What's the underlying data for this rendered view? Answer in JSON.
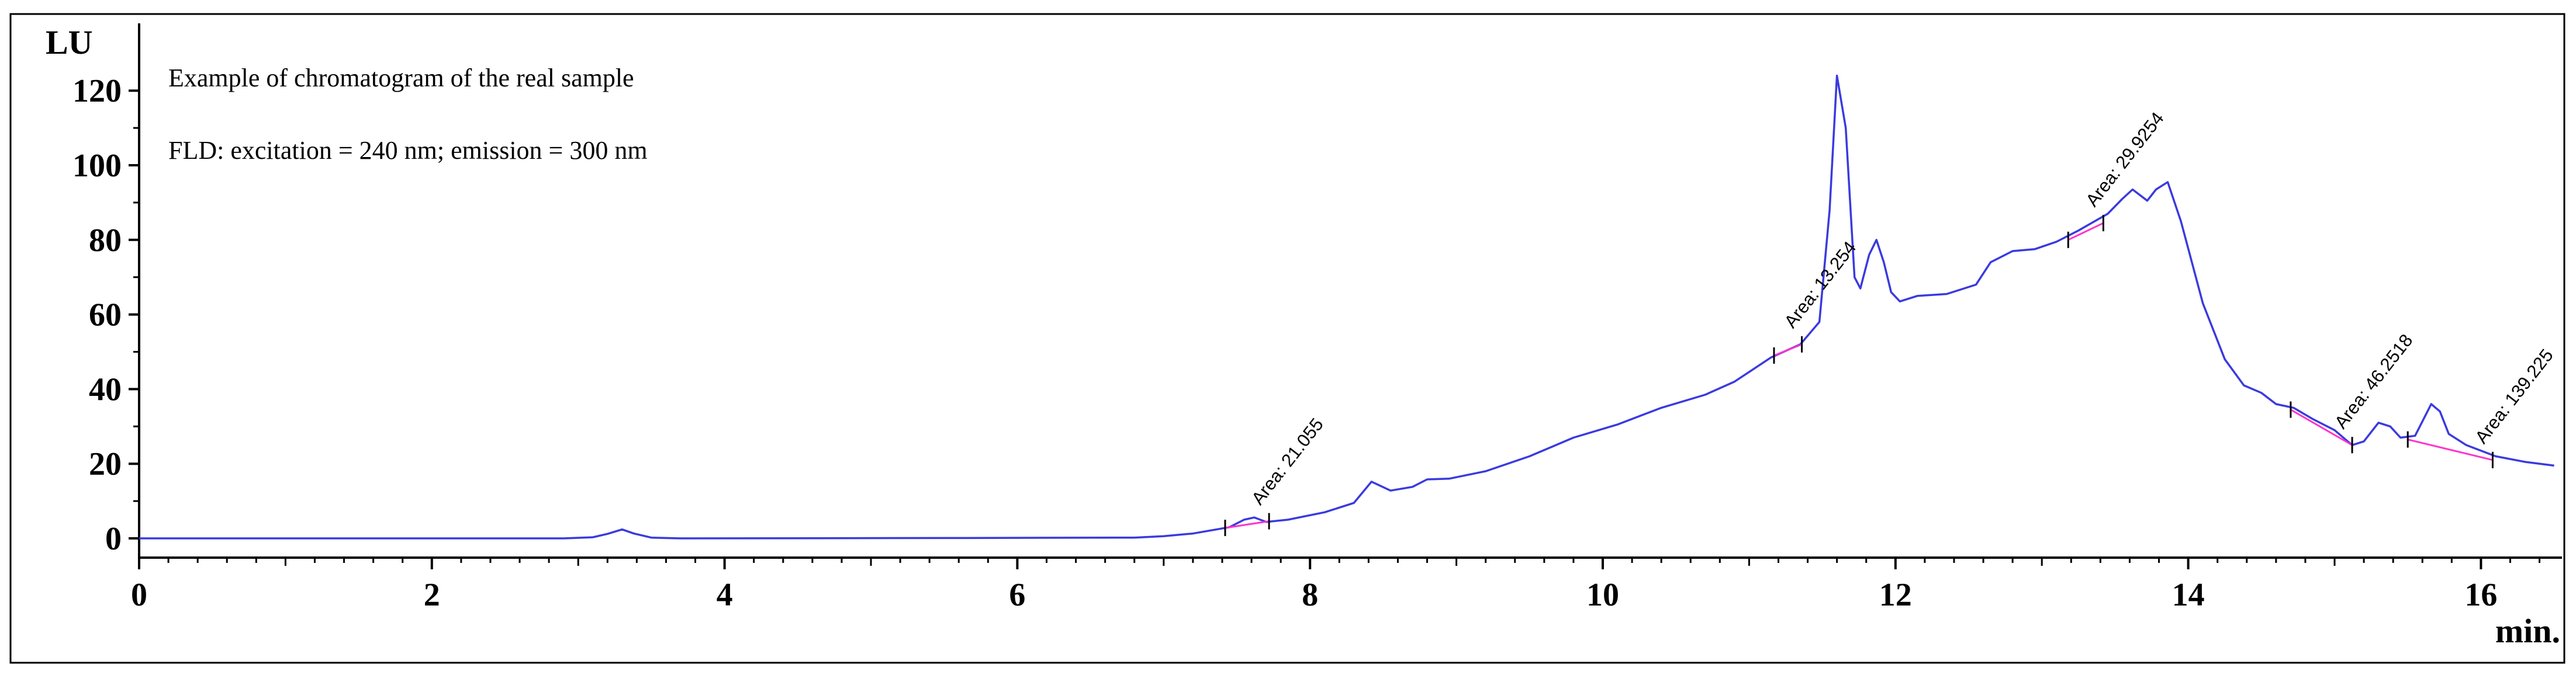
{
  "chart_data": {
    "type": "line",
    "ylabel": "LU",
    "xlabel": "min.",
    "xlim": [
      0,
      16.5
    ],
    "ylim": [
      -6,
      130
    ],
    "x_ticks": [
      0,
      2,
      4,
      6,
      8,
      10,
      12,
      14,
      16
    ],
    "y_ticks": [
      0,
      20,
      40,
      60,
      80,
      100,
      120
    ],
    "x_tick_labels": [
      "0",
      "2",
      "4",
      "6",
      "8",
      "10",
      "12",
      "14",
      "16"
    ],
    "y_tick_labels": [
      "0",
      "20",
      "40",
      "60",
      "80",
      "100",
      "120"
    ],
    "grid": false,
    "annotations": [
      "Example of chromatogram of the real sample",
      "FLD: excitation = 240 nm; emission = 300 nm"
    ],
    "series_color": "#3a3ae0",
    "baseline_color": "#ff33cc",
    "series": [
      {
        "points": [
          [
            0,
            0
          ],
          [
            1.5,
            0
          ],
          [
            2.9,
            0
          ],
          [
            3.1,
            0.3
          ],
          [
            3.2,
            1.2
          ],
          [
            3.3,
            2.4
          ],
          [
            3.38,
            1.3
          ],
          [
            3.5,
            0.2
          ],
          [
            3.7,
            0
          ],
          [
            5.5,
            0.1
          ],
          [
            6.8,
            0.2
          ],
          [
            7.0,
            0.6
          ],
          [
            7.2,
            1.3
          ],
          [
            7.45,
            3.0
          ],
          [
            7.55,
            5.0
          ],
          [
            7.62,
            5.6
          ],
          [
            7.7,
            4.4
          ],
          [
            7.85,
            5.0
          ],
          [
            8.1,
            7.0
          ],
          [
            8.3,
            9.5
          ],
          [
            8.42,
            15.2
          ],
          [
            8.55,
            12.8
          ],
          [
            8.7,
            13.8
          ],
          [
            8.8,
            15.8
          ],
          [
            8.95,
            16.0
          ],
          [
            9.2,
            18.0
          ],
          [
            9.5,
            22.0
          ],
          [
            9.8,
            27.0
          ],
          [
            10.1,
            30.5
          ],
          [
            10.4,
            35.0
          ],
          [
            10.7,
            38.5
          ],
          [
            10.9,
            42.0
          ],
          [
            11.15,
            48.5
          ],
          [
            11.35,
            52.0
          ],
          [
            11.48,
            58.0
          ],
          [
            11.55,
            88.0
          ],
          [
            11.6,
            124.0
          ],
          [
            11.66,
            110.0
          ],
          [
            11.72,
            70.0
          ],
          [
            11.76,
            67.0
          ],
          [
            11.82,
            76.0
          ],
          [
            11.87,
            80.0
          ],
          [
            11.92,
            74.0
          ],
          [
            11.97,
            66.0
          ],
          [
            12.03,
            63.5
          ],
          [
            12.15,
            65.0
          ],
          [
            12.35,
            65.5
          ],
          [
            12.55,
            68.0
          ],
          [
            12.65,
            74.0
          ],
          [
            12.8,
            77.0
          ],
          [
            12.95,
            77.5
          ],
          [
            13.1,
            79.5
          ],
          [
            13.25,
            82.5
          ],
          [
            13.45,
            87.0
          ],
          [
            13.55,
            91.0
          ],
          [
            13.62,
            93.5
          ],
          [
            13.72,
            90.5
          ],
          [
            13.78,
            93.5
          ],
          [
            13.86,
            95.5
          ],
          [
            13.95,
            85.0
          ],
          [
            14.1,
            63.0
          ],
          [
            14.25,
            48.0
          ],
          [
            14.38,
            41.0
          ],
          [
            14.5,
            39.0
          ],
          [
            14.6,
            36.0
          ],
          [
            14.72,
            35.0
          ],
          [
            14.85,
            32.0
          ],
          [
            15.0,
            29.0
          ],
          [
            15.12,
            25.0
          ],
          [
            15.2,
            26.0
          ],
          [
            15.3,
            31.0
          ],
          [
            15.38,
            30.0
          ],
          [
            15.45,
            27.0
          ],
          [
            15.55,
            27.5
          ],
          [
            15.66,
            36.0
          ],
          [
            15.72,
            34.0
          ],
          [
            15.78,
            28.0
          ],
          [
            15.9,
            25.0
          ],
          [
            16.1,
            22.0
          ],
          [
            16.3,
            20.5
          ],
          [
            16.5,
            19.5
          ]
        ]
      }
    ],
    "integrations": [
      {
        "label": "Area: 21.055",
        "x_start": 7.42,
        "y_start": 2.8,
        "x_end": 7.72,
        "y_end": 4.6
      },
      {
        "label": "Area: 13.254",
        "x_start": 11.17,
        "y_start": 49.0,
        "x_end": 11.36,
        "y_end": 52.0
      },
      {
        "label": "Area: 29.9254",
        "x_start": 13.18,
        "y_start": 80.0,
        "x_end": 13.42,
        "y_end": 84.5
      },
      {
        "label": "Area: 46.2518",
        "x_start": 14.7,
        "y_start": 34.5,
        "x_end": 15.12,
        "y_end": 25.0
      },
      {
        "label": "Area: 139.225",
        "x_start": 15.5,
        "y_start": 26.5,
        "x_end": 16.08,
        "y_end": 21.0
      }
    ]
  }
}
